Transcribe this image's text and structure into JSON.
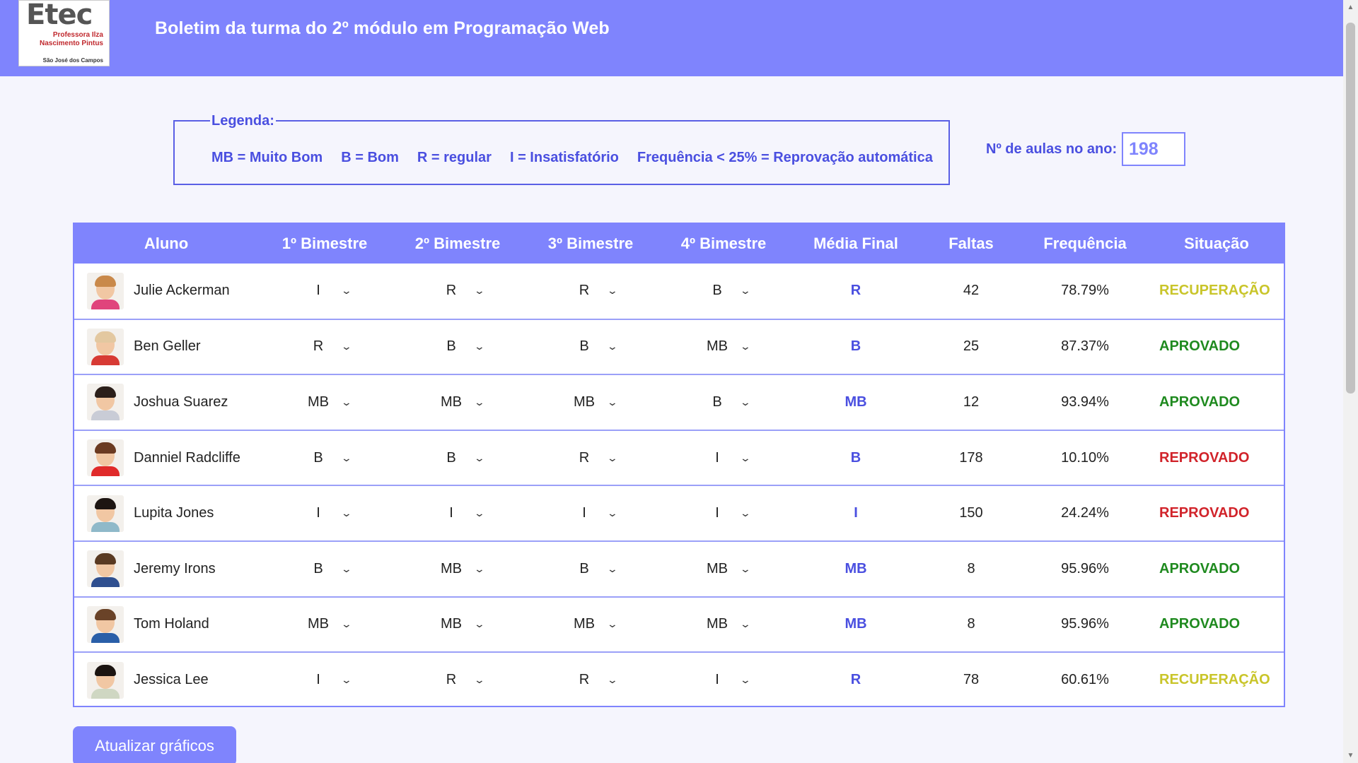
{
  "header": {
    "logo_main": "Etec",
    "logo_sub": "Professora Ilza Nascimento Pintus",
    "logo_city": "São José dos Campos",
    "title": "Boletim da turma do 2º módulo em Programação Web"
  },
  "legend": {
    "title": "Legenda:",
    "items": [
      "MB = Muito Bom",
      "B = Bom",
      "R = regular",
      "I = Insatisfatório",
      "Frequência < 25% = Reprovação automática"
    ]
  },
  "aulas": {
    "label": "Nº de aulas no ano:",
    "value": "198"
  },
  "table": {
    "headers": [
      "Aluno",
      "1º Bimestre",
      "2º Bimestre",
      "3º Bimestre",
      "4º Bimestre",
      "Média Final",
      "Faltas",
      "Frequência",
      "Situação"
    ],
    "rows": [
      {
        "name": "Julie Ackerman",
        "b1": "I",
        "b2": "R",
        "b3": "R",
        "b4": "B",
        "media": "R",
        "faltas": "42",
        "freq": "78.79%",
        "situacao": "RECUPERAÇÃO",
        "status": "recup",
        "hair": "#c9894a",
        "shirt": "#e0447c"
      },
      {
        "name": "Ben Geller",
        "b1": "R",
        "b2": "B",
        "b3": "B",
        "b4": "MB",
        "media": "B",
        "faltas": "25",
        "freq": "87.37%",
        "situacao": "APROVADO",
        "status": "aprovado",
        "hair": "#e3c8a0",
        "shirt": "#d73a34"
      },
      {
        "name": "Joshua Suarez",
        "b1": "MB",
        "b2": "MB",
        "b3": "MB",
        "b4": "B",
        "media": "MB",
        "faltas": "12",
        "freq": "93.94%",
        "situacao": "APROVADO",
        "status": "aprovado",
        "hair": "#2b1f1a",
        "shirt": "#c9ccd6"
      },
      {
        "name": "Danniel Radcliffe",
        "b1": "B",
        "b2": "B",
        "b3": "R",
        "b4": "I",
        "media": "B",
        "faltas": "178",
        "freq": "10.10%",
        "situacao": "REPROVADO",
        "status": "reprov",
        "hair": "#6b3b22",
        "shirt": "#e02a2a"
      },
      {
        "name": "Lupita Jones",
        "b1": "I",
        "b2": "I",
        "b3": "I",
        "b4": "I",
        "media": "I",
        "faltas": "150",
        "freq": "24.24%",
        "situacao": "REPROVADO",
        "status": "reprov",
        "hair": "#1d1512",
        "shirt": "#8fb9c9"
      },
      {
        "name": "Jeremy Irons",
        "b1": "B",
        "b2": "MB",
        "b3": "B",
        "b4": "MB",
        "media": "MB",
        "faltas": "8",
        "freq": "95.96%",
        "situacao": "APROVADO",
        "status": "aprovado",
        "hair": "#5a3a22",
        "shirt": "#2f4f8f"
      },
      {
        "name": "Tom Holand",
        "b1": "MB",
        "b2": "MB",
        "b3": "MB",
        "b4": "MB",
        "media": "MB",
        "faltas": "8",
        "freq": "95.96%",
        "situacao": "APROVADO",
        "status": "aprovado",
        "hair": "#6a4328",
        "shirt": "#2a5fa8"
      },
      {
        "name": "Jessica Lee",
        "b1": "I",
        "b2": "R",
        "b3": "R",
        "b4": "I",
        "media": "R",
        "faltas": "78",
        "freq": "60.61%",
        "situacao": "RECUPERAÇÃO",
        "status": "recup",
        "hair": "#1b1411",
        "shirt": "#cfd7c2"
      }
    ]
  },
  "button": {
    "label": "Atualizar gráficos"
  },
  "colors": {
    "accent": "#7f84fd",
    "legend_text": "#4a4fe0",
    "aprovado": "#1f8a1f",
    "recuperacao": "#c9c52a",
    "reprovado": "#d1232a"
  }
}
